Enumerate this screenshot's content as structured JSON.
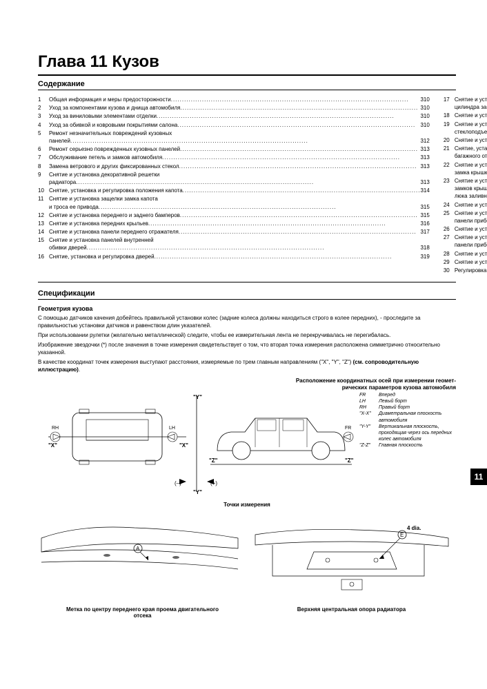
{
  "chapter_title": "Глава 11 Кузов",
  "labels": {
    "contents": "Содержание",
    "specs": "Спецификации"
  },
  "tab_number": "11",
  "toc_left": [
    {
      "n": "1",
      "t": "Общая информация и меры предосторожности",
      "p": "310"
    },
    {
      "n": "2",
      "t": "Уход за компонентами кузова и днища автомобиля",
      "p": "310"
    },
    {
      "n": "3",
      "t": "Уход за виниловыми элементами отделки",
      "p": "310"
    },
    {
      "n": "4",
      "t": "Уход за обивкой и ковровыми покрытиями салона",
      "p": "310"
    },
    {
      "n": "5",
      "t": "Ремонт незначительных повреждений кузовных",
      "t2": "панелей",
      "p": "312"
    },
    {
      "n": "6",
      "t": "Ремонт серьезно поврежденных кузовных панелей",
      "p": "313"
    },
    {
      "n": "7",
      "t": "Обслуживание петель и замков автомобиля",
      "p": "313"
    },
    {
      "n": "8",
      "t": "Замена ветрового и других фиксированных стекол",
      "p": "313"
    },
    {
      "n": "9",
      "t": "Снятие и установка декоративной решетки",
      "t2": "радиатора",
      "p": "313"
    },
    {
      "n": "10",
      "t": "Снятие, установка и регулировка положения капота",
      "p": "314"
    },
    {
      "n": "11",
      "t": "Снятие и установка защелки замка капота",
      "t2": "и троса ее привода",
      "p": "315"
    },
    {
      "n": "12",
      "t": "Снятие и установка переднего и заднего бамперов",
      "p": "315"
    },
    {
      "n": "13",
      "t": "Снятие и установка передних крыльев",
      "p": "316"
    },
    {
      "n": "14",
      "t": "Снятие и установка панели переднего отражателя",
      "p": "317"
    },
    {
      "n": "15",
      "t": "Снятие и установка панелей внутренней",
      "t2": "обивки дверей",
      "p": "318"
    },
    {
      "n": "16",
      "t": "Снятие, установка и регулировка дверей",
      "p": "319"
    }
  ],
  "toc_right": [
    {
      "n": "17",
      "t": "Снятие и установка защелки,",
      "t2": "цилиндра замка и ручек двери",
      "p": "319"
    },
    {
      "n": "18",
      "t": "Снятие и установка дверных стекол",
      "p": "320"
    },
    {
      "n": "19",
      "t": "Снятие и установка регуляторов",
      "t2": "стеклоподъемников",
      "p": "320"
    },
    {
      "n": "20",
      "t": "Снятие и установка зеркал заднего вида",
      "p": "320"
    },
    {
      "n": "21",
      "t": "Снятие, установка и регулировка крышки",
      "t2": "багажного отделения",
      "p": "321"
    },
    {
      "n": "22",
      "t": "Снятие и установка защелки и цилиндра",
      "t2": "замка крышки багажного отделения",
      "p": "321"
    },
    {
      "n": "23",
      "t": "Снятие и установка приводных тросов отпускания",
      "t2": "замков крышки багажного отделения и дверцы",
      "t3": "люка заливной горловины топливного бака",
      "p": "322"
    },
    {
      "n": "24",
      "t": "Снятие и установка центральной консоли",
      "p": "322"
    },
    {
      "n": "25",
      "t": "Снятие и установка отделочных секций",
      "t2": "панели приборов",
      "p": "322"
    },
    {
      "n": "26",
      "t": "Снятие и установка секций кожуха рулевой колонки",
      "p": "324"
    },
    {
      "n": "27",
      "t": "Снятие и установка основной секции",
      "t2": "панели приборов",
      "p": "324"
    },
    {
      "n": "28",
      "t": "Снятие и установка сидений",
      "p": "326"
    },
    {
      "n": "29",
      "t": "Снятие и установка задней полки",
      "p": "327"
    },
    {
      "n": "30",
      "t": "Регулировка верхнего люка",
      "p": "327"
    }
  ],
  "geometry": {
    "title": "Геометрия кузова",
    "p1": "С помощью датчиков качения добейтесь правильной установки колес (задние колеса должны находиться строго в колее передних), - проследите за правильностью установки датчиков и равенством длин указателей.",
    "p2": "При использовании рулетки (желательно металлической) следите, чтобы ее измерительная лента не перекручивалась не перегибалась.",
    "p3": "Изображение звездочки (*) после значения в точке измерения свидетельствует о том, что вторая точка измерения расположена симметрично относительно указанной.",
    "p4a": "В качестве координат точек измерения выступают расстояния, измеряемые по трем главным направлениям (\"X\", \"Y\", \"Z\") ",
    "p4b": "(см. сопроводительную иллюстрацию)",
    "fig1_title_l1": "Расположение координатных осей при измерении геомет-",
    "fig1_title_l2": "рических параметров кузова автомобиля"
  },
  "diagram1": {
    "labels": {
      "Y": "\"Y\"",
      "X": "\"X\"",
      "Z": "\"Z\"",
      "RH": "RH",
      "LH": "LH",
      "FR": "FR",
      "minus": "(–)",
      "plus": "(+)"
    },
    "legend": [
      {
        "k": "FR",
        "v": "Вперед"
      },
      {
        "k": "LH",
        "v": "Левый борт"
      },
      {
        "k": "RH",
        "v": "Правый борт"
      },
      {
        "k": "\"X-X\"",
        "v": "Диаметральная плоскость автомобиля"
      },
      {
        "k": "\"Y-Y\"",
        "v": "Вертикальная плоскость, проходящая через ось передних колес автомобиля"
      },
      {
        "k": "\"Z-Z\"",
        "v": "Главная плоскость"
      }
    ],
    "stroke": "#000000",
    "fill": "#ffffff"
  },
  "caption_points": "Точки измерения",
  "diagram2": {
    "label_A": "A",
    "label_E": "E",
    "label_4dia": "4 dia.",
    "stroke": "#000000"
  },
  "caption_bottom_left_l1": "Метка по центру переднего края проема двигательного",
  "caption_bottom_left_l2": "отсека",
  "caption_bottom_right": "Верхняя центральная опора радиатора"
}
